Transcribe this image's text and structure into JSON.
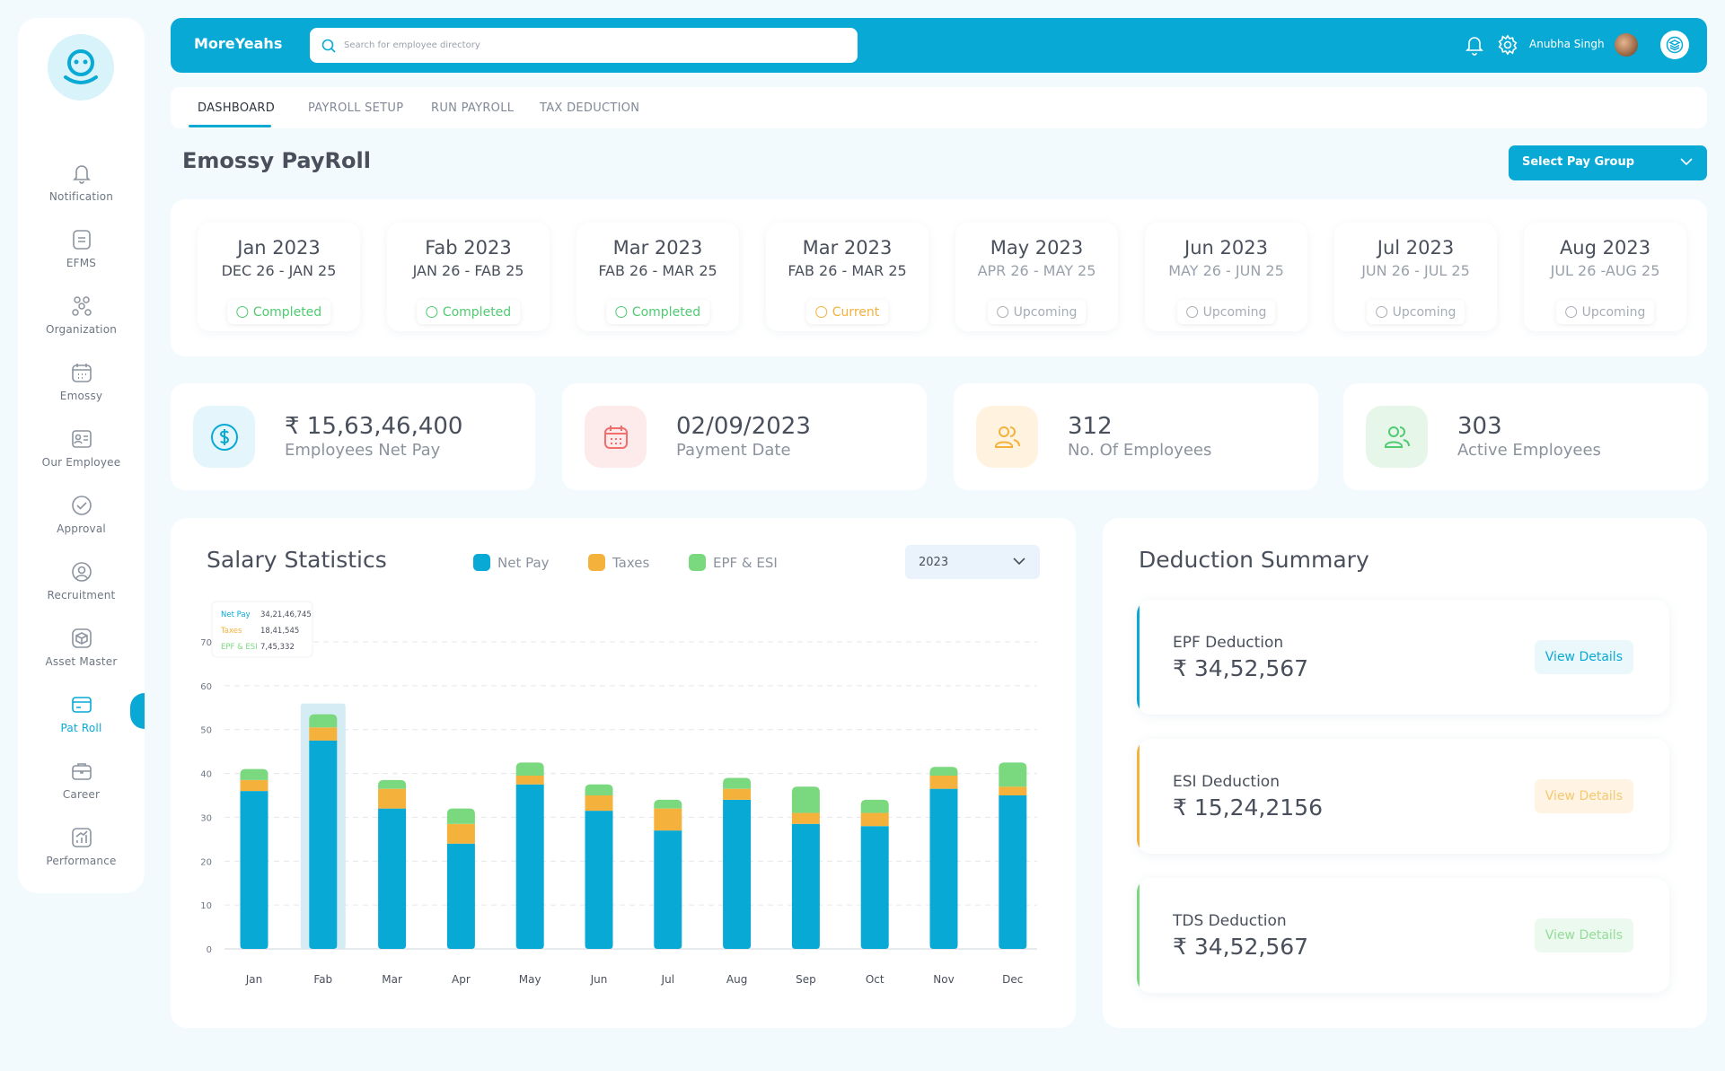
{
  "header": {
    "brand": "MoreYeahs",
    "search_placeholder": "Search for employee directory",
    "user_name": "Anubha Singh"
  },
  "sidebar": {
    "items": [
      {
        "label": "Notification",
        "icon": "bell-icon"
      },
      {
        "label": "EFMS",
        "icon": "document-icon"
      },
      {
        "label": "Organization",
        "icon": "org-icon"
      },
      {
        "label": "Emossy",
        "icon": "calendar-icon"
      },
      {
        "label": "Our Employee",
        "icon": "id-card-icon"
      },
      {
        "label": "Approval",
        "icon": "check-circle-icon"
      },
      {
        "label": "Recruitment",
        "icon": "user-circle-icon"
      },
      {
        "label": "Asset Master",
        "icon": "box-icon"
      },
      {
        "label": "Pat Roll",
        "icon": "payroll-card-icon",
        "active": true
      },
      {
        "label": "Career",
        "icon": "briefcase-icon"
      },
      {
        "label": "Performance",
        "icon": "chart-icon"
      }
    ]
  },
  "tabs": [
    {
      "label": "DASHBOARD",
      "active": true
    },
    {
      "label": "PAYROLL SETUP"
    },
    {
      "label": "RUN PAYROLL"
    },
    {
      "label": "TAX DEDUCTION"
    }
  ],
  "page": {
    "title": "Emossy PayRoll",
    "pay_group_label": "Select Pay Group"
  },
  "periods": [
    {
      "month": "Jan 2023",
      "range": "DEC 26 - JAN 25",
      "status": "Completed"
    },
    {
      "month": "Fab 2023",
      "range": "JAN 26 - FAB 25",
      "status": "Completed"
    },
    {
      "month": "Mar 2023",
      "range": "FAB 26 - MAR 25",
      "status": "Completed"
    },
    {
      "month": "Mar 2023",
      "range": "FAB 26 - MAR 25",
      "status": "Current"
    },
    {
      "month": "May 2023",
      "range": "APR 26 - MAY 25",
      "status": "Upcoming"
    },
    {
      "month": "Jun 2023",
      "range": "MAY 26 - JUN 25",
      "status": "Upcoming"
    },
    {
      "month": "Jul 2023",
      "range": "JUN 26 - JUL 25",
      "status": "Upcoming"
    },
    {
      "month": "Aug 2023",
      "range": "JUL 26 -AUG 25",
      "status": "Upcoming"
    }
  ],
  "stats": [
    {
      "value": "₹ 15,63,46,400",
      "label": "Employees Net Pay",
      "icon": "dollar-icon",
      "color": "#08a9d5",
      "bg": "#e4f6fb"
    },
    {
      "value": "02/09/2023",
      "label": "Payment Date",
      "icon": "calendar-icon",
      "color": "#f26d6d",
      "bg": "#fdeaea"
    },
    {
      "value": "312",
      "label": "No. Of Employees",
      "icon": "users-icon",
      "color": "#f4b13c",
      "bg": "#fff3e0"
    },
    {
      "value": "303",
      "label": "Active Employees",
      "icon": "users-icon",
      "color": "#4fcb72",
      "bg": "#e6f7ea"
    }
  ],
  "salary": {
    "title": "Salary Statistics",
    "year": "2023"
  },
  "chart_data": {
    "type": "bar",
    "stacked": true,
    "categories": [
      "Jan",
      "Fab",
      "Mar",
      "Apr",
      "May",
      "Jun",
      "Jul",
      "Aug",
      "Sep",
      "Oct",
      "Nov",
      "Dec"
    ],
    "series": [
      {
        "name": "Net Pay",
        "color": "#08a9d5",
        "values": [
          36,
          47.5,
          32,
          24,
          37.5,
          31.5,
          27,
          34,
          28.5,
          28,
          36.5,
          35
        ]
      },
      {
        "name": "Taxes",
        "color": "#f4b13c",
        "values": [
          2.5,
          3,
          4.5,
          4.5,
          2,
          3.5,
          5,
          2.5,
          2.5,
          3,
          3,
          2
        ]
      },
      {
        "name": "EPF & ESI",
        "color": "#7ad97f",
        "values": [
          2.5,
          3,
          2,
          3.5,
          3,
          2.5,
          2,
          2.5,
          6,
          3,
          2,
          5.5
        ]
      }
    ],
    "ylim": [
      0,
      70
    ],
    "yticks": [
      0,
      10,
      20,
      30,
      40,
      50,
      60,
      70
    ],
    "grid": true,
    "legend": "top",
    "tooltip": {
      "category": "Fab",
      "rows": [
        {
          "name": "Net Pay",
          "value": "34,21,46,745"
        },
        {
          "name": "Taxes",
          "value": "18,41,545"
        },
        {
          "name": "EPF & ESI",
          "value": "7,45,332"
        }
      ]
    }
  },
  "deductions": {
    "title": "Deduction Summary",
    "items": [
      {
        "title": "EPF Deduction",
        "value": "₹ 34,52,567",
        "action": "View Details",
        "color": "#08a9d5",
        "bg": "#eaf8fc"
      },
      {
        "title": "ESI Deduction",
        "value": "₹ 15,24,2156",
        "action": "View Details",
        "color": "#f4b13c",
        "bg": "#fff4e3"
      },
      {
        "title": "TDS Deduction",
        "value": "₹ 34,52,567",
        "action": "View Details",
        "color": "#7ad97f",
        "bg": "#ecf9ee"
      }
    ]
  }
}
